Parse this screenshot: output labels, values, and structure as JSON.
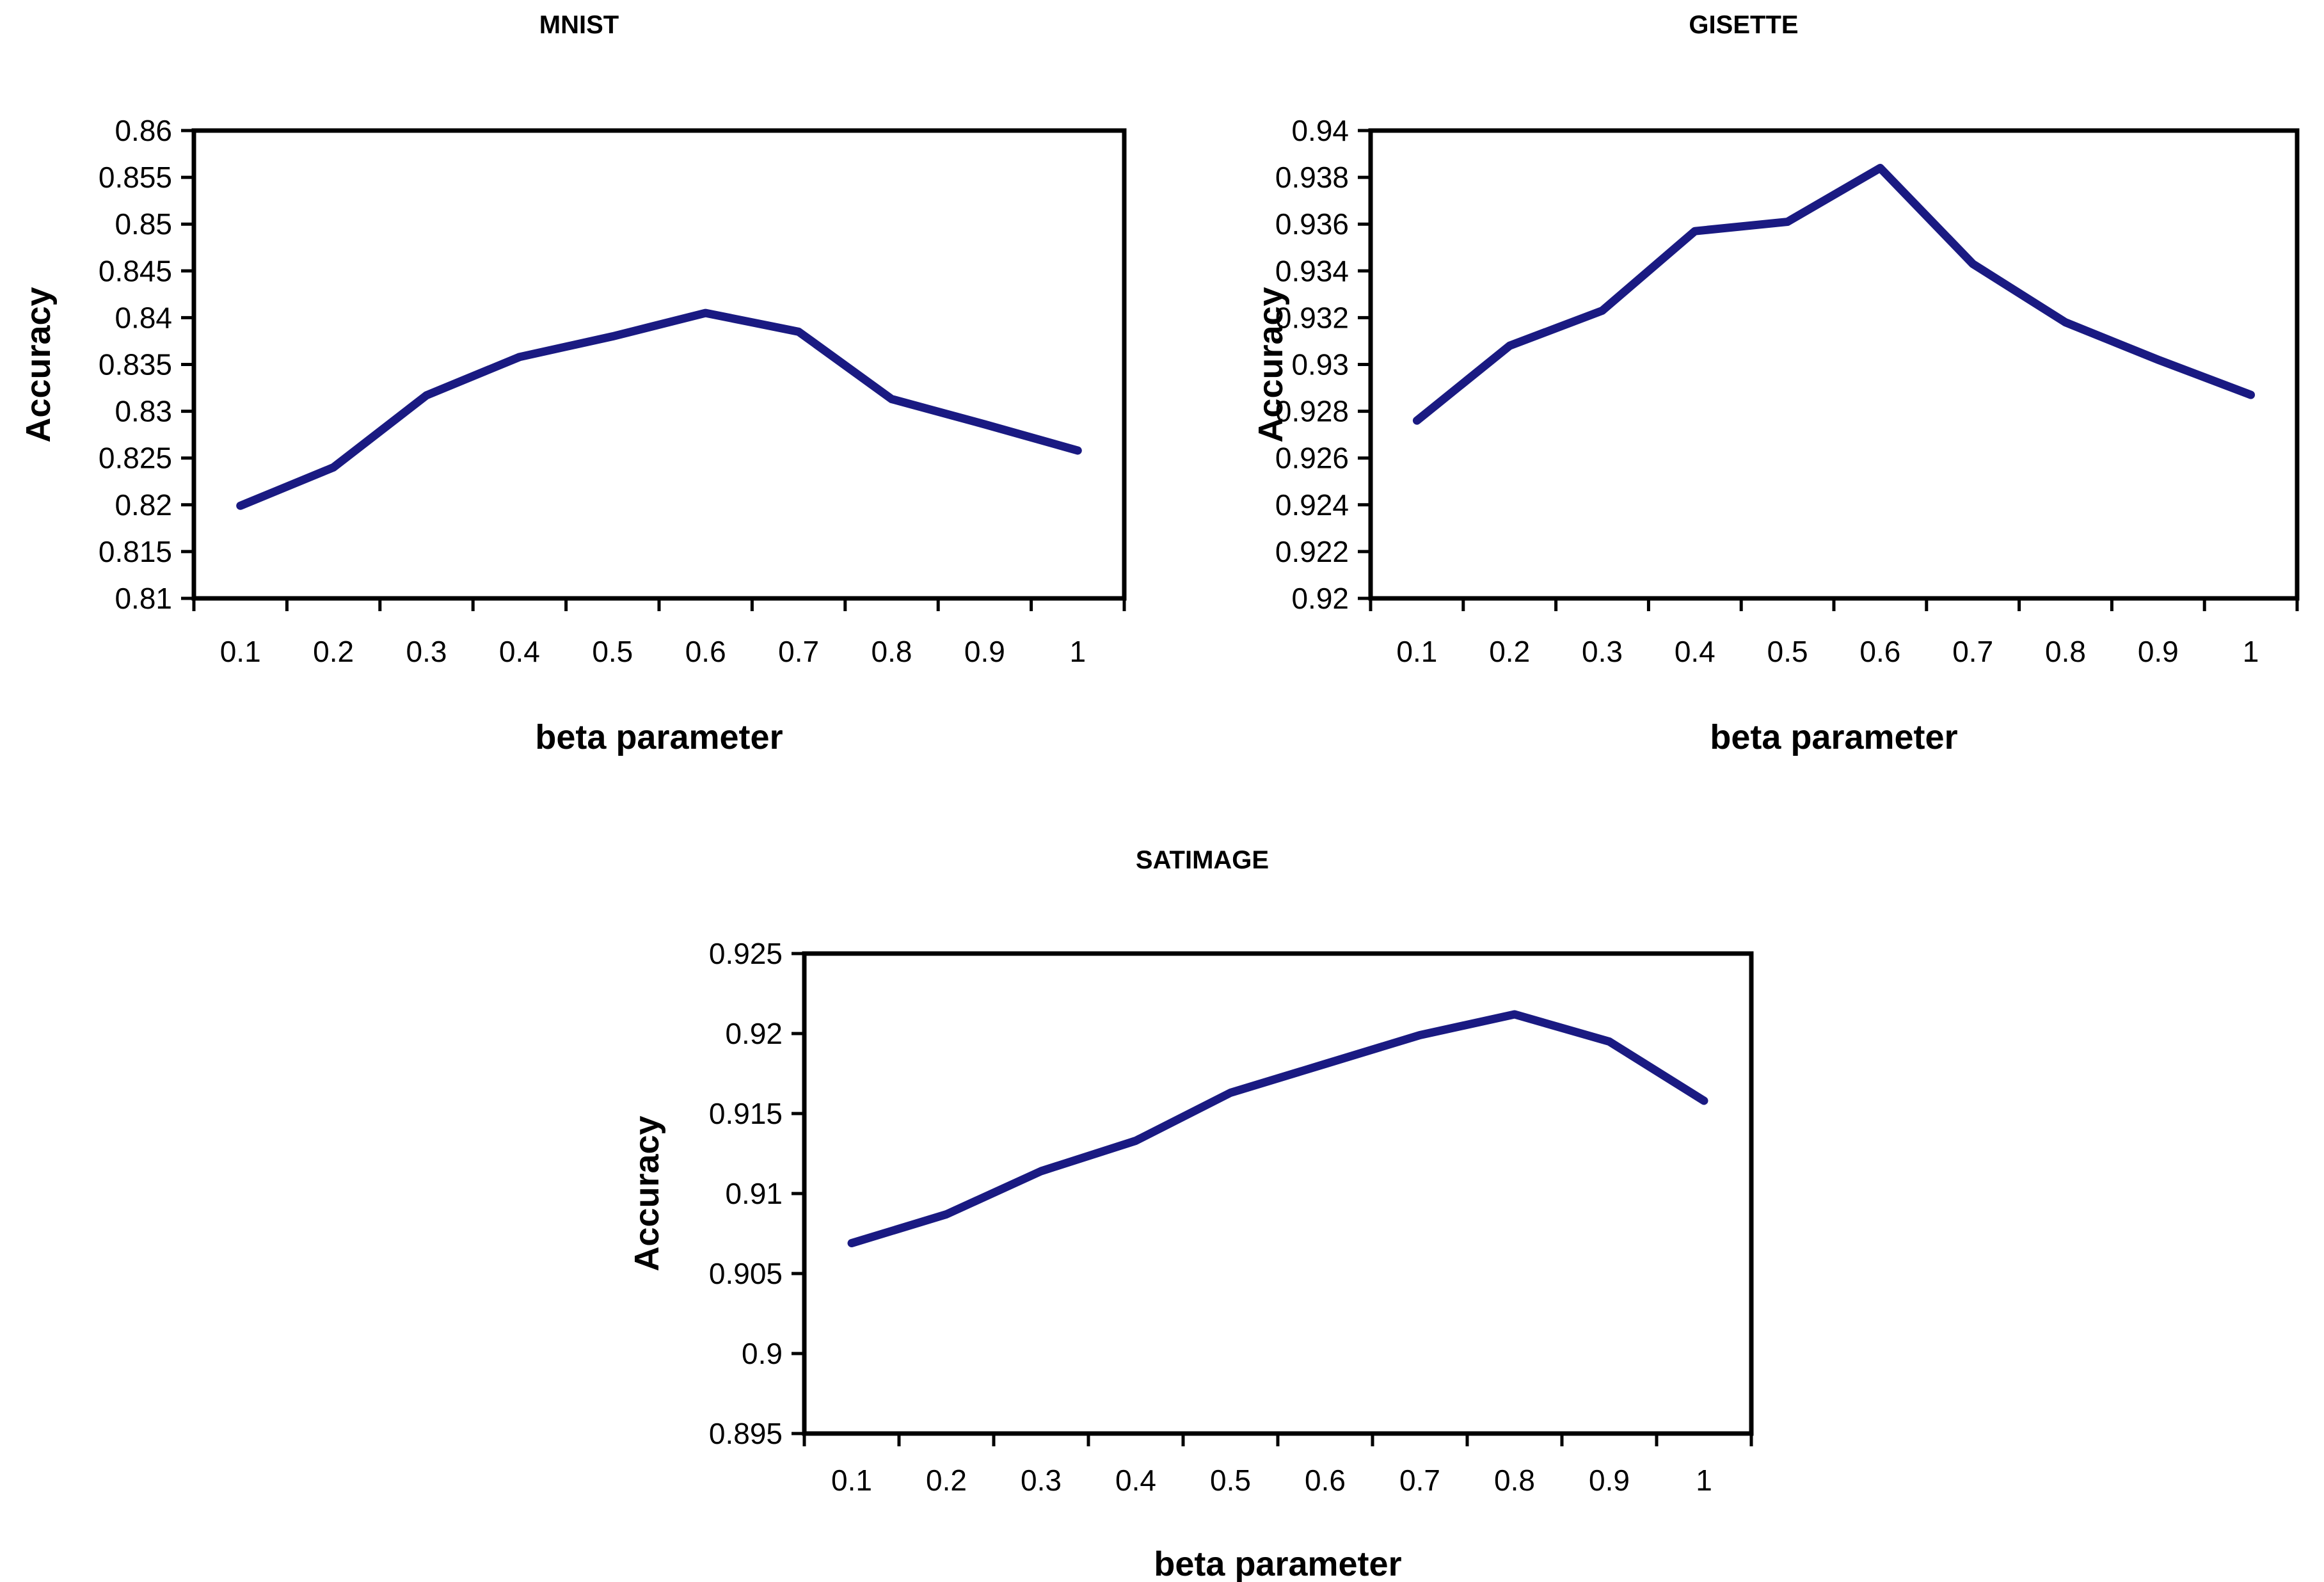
{
  "page": {
    "background_color": "#ffffff",
    "text_color": "#000000"
  },
  "chart_data": [
    {
      "type": "line",
      "title": "MNIST",
      "xlabel": "beta parameter",
      "ylabel": "Accuracy",
      "categories": [
        "0.1",
        "0.2",
        "0.3",
        "0.4",
        "0.5",
        "0.6",
        "0.7",
        "0.8",
        "0.9",
        "1"
      ],
      "values": [
        0.8199,
        0.824,
        0.8317,
        0.8358,
        0.838,
        0.8405,
        0.8385,
        0.8313,
        0.8286,
        0.8258
      ],
      "ylim": [
        0.81,
        0.86
      ],
      "ytick_step": 0.005,
      "ytick_labels": [
        "0.86",
        "0.855",
        "0.85",
        "0.845",
        "0.84",
        "0.835",
        "0.83",
        "0.825",
        "0.82",
        "0.815",
        "0.81"
      ],
      "line_color": "#1a1a82",
      "x_axis_type": "category",
      "grid": false,
      "legend": "none"
    },
    {
      "type": "line",
      "title": "GISETTE",
      "xlabel": "beta parameter",
      "ylabel": "Accuracy",
      "categories": [
        "0.1",
        "0.2",
        "0.3",
        "0.4",
        "0.5",
        "0.6",
        "0.7",
        "0.8",
        "0.9",
        "1"
      ],
      "values": [
        0.9276,
        0.9308,
        0.9323,
        0.9357,
        0.9361,
        0.9384,
        0.9343,
        0.9318,
        0.9302,
        0.9287
      ],
      "ylim": [
        0.92,
        0.94
      ],
      "ytick_step": 0.002,
      "ytick_labels": [
        "0.94",
        "0.938",
        "0.936",
        "0.934",
        "0.932",
        "0.93",
        "0.928",
        "0.926",
        "0.924",
        "0.922",
        "0.92"
      ],
      "line_color": "#1a1a82",
      "x_axis_type": "category",
      "grid": false,
      "legend": "none"
    },
    {
      "type": "line",
      "title": "SATIMAGE",
      "xlabel": "beta parameter",
      "ylabel": "Accuracy",
      "categories": [
        "0.1",
        "0.2",
        "0.3",
        "0.4",
        "0.5",
        "0.6",
        "0.7",
        "0.8",
        "0.9",
        "1"
      ],
      "values": [
        0.9069,
        0.9087,
        0.9114,
        0.9133,
        0.9163,
        0.9181,
        0.9199,
        0.9212,
        0.9195,
        0.9158
      ],
      "ylim": [
        0.895,
        0.925
      ],
      "ytick_step": 0.005,
      "ytick_labels": [
        "0.925",
        "0.92",
        "0.915",
        "0.91",
        "0.905",
        "0.9",
        "0.895"
      ],
      "line_color": "#1a1a82",
      "x_axis_type": "category",
      "grid": false,
      "legend": "none"
    }
  ]
}
